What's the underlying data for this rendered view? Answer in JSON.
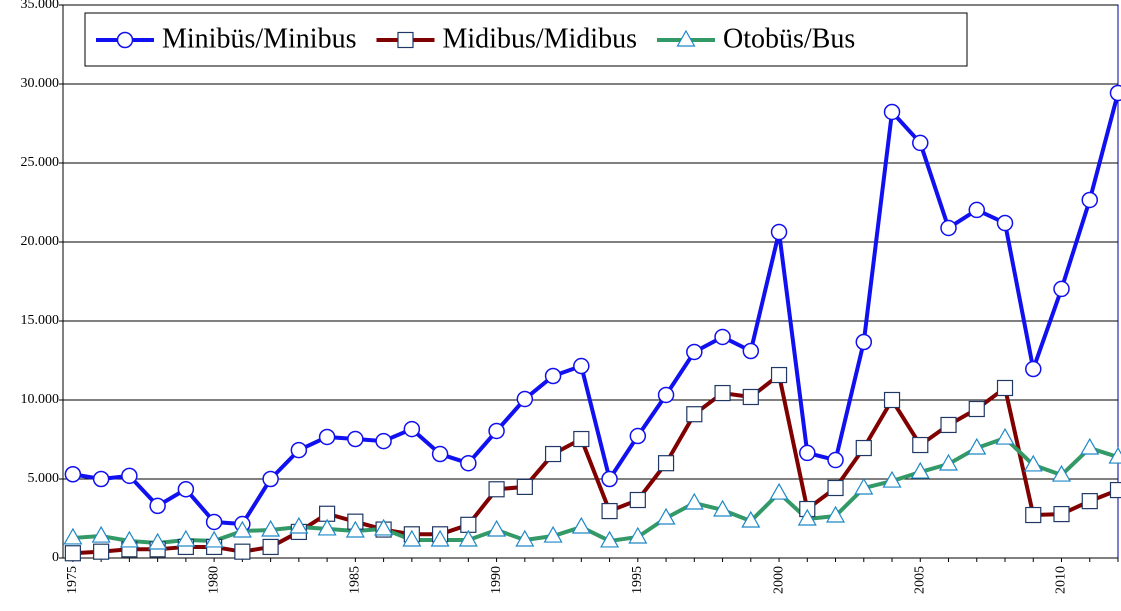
{
  "chart_data": {
    "type": "line",
    "x": [
      1975,
      1976,
      1977,
      1978,
      1979,
      1980,
      1981,
      1982,
      1983,
      1984,
      1985,
      1986,
      1987,
      1988,
      1989,
      1990,
      1991,
      1992,
      1993,
      1994,
      1995,
      1996,
      1997,
      1998,
      1999,
      2000,
      2001,
      2002,
      2003,
      2004,
      2005,
      2006,
      2007,
      2008,
      2009,
      2010,
      2011,
      2012
    ],
    "series": [
      {
        "name": "Minibüs/Minibus",
        "color": "#1010f0",
        "marker": "circle",
        "marker_color": "#1010f0",
        "values": [
          5300,
          5000,
          5200,
          3300,
          4350,
          2280,
          2150,
          5000,
          6830,
          7660,
          7530,
          7400,
          8160,
          6580,
          6000,
          8040,
          10060,
          11520,
          12150,
          5000,
          7720,
          10320,
          13040,
          13990,
          13100,
          20630,
          6650,
          6200,
          13670,
          28230,
          26270,
          20890,
          22030,
          21200,
          11960,
          17030,
          22660,
          29430
        ]
      },
      {
        "name": "Midibus/Midibus",
        "color": "#800000",
        "marker": "square",
        "marker_color": "#1f3864",
        "values": [
          300,
          400,
          550,
          550,
          700,
          700,
          400,
          700,
          1650,
          2800,
          2300,
          1800,
          1500,
          1500,
          2100,
          4350,
          4500,
          6580,
          7530,
          2970,
          3670,
          6000,
          9100,
          10440,
          10190,
          11580,
          3100,
          4430,
          6960,
          10000,
          7150,
          8420,
          9430,
          10760,
          2720,
          2780,
          3600,
          4300
        ]
      },
      {
        "name": "Otobüs/Bus",
        "color": "#339966",
        "marker": "triangle",
        "marker_color": "#1e88c8",
        "values": [
          1270,
          1390,
          1080,
          950,
          1140,
          1080,
          1710,
          1770,
          1960,
          1840,
          1710,
          1840,
          1140,
          1140,
          1140,
          1770,
          1140,
          1390,
          1960,
          1080,
          1330,
          2530,
          3480,
          3040,
          2340,
          4110,
          2470,
          2660,
          4430,
          4870,
          5440,
          5950,
          6960,
          7590,
          5890,
          5250,
          6960,
          6390
        ]
      }
    ],
    "xlim": [
      1974.65,
      2012
    ],
    "xticks": [
      1975,
      1980,
      1985,
      1990,
      1995,
      2000,
      2005,
      2010
    ],
    "ylim": [
      0,
      35000
    ],
    "yticks": [
      0,
      {
        "value": 5000,
        "label": "5.000"
      },
      {
        "value": 10000,
        "label": "10.000"
      },
      {
        "value": 15000,
        "label": "15.000"
      },
      {
        "value": 20000,
        "label": "20.000"
      },
      {
        "value": 25000,
        "label": "25.000"
      },
      {
        "value": 30000,
        "label": "30.000"
      },
      {
        "value": 35000,
        "label": "35.000"
      }
    ],
    "grid": true
  }
}
